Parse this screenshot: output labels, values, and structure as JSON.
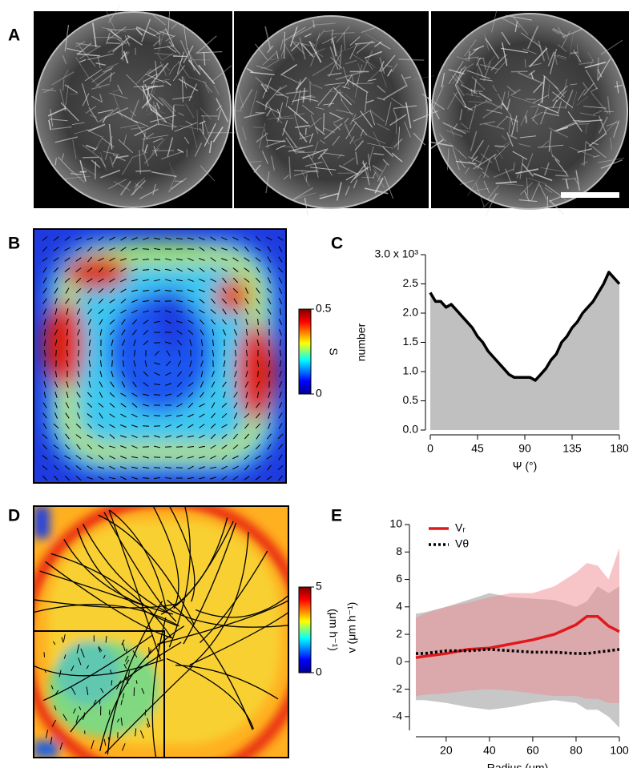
{
  "panel_labels": [
    "A",
    "B",
    "C",
    "D",
    "E"
  ],
  "chart_data": [
    {
      "type": "colorbar",
      "label": "S",
      "ylim": [
        0,
        0.5
      ],
      "yticks": [
        0,
        0.5
      ]
    },
    {
      "type": "area",
      "xlabel": "Ψ (°)",
      "ylabel": "number",
      "color": "#000000",
      "fill": "#c0c0c0",
      "x": [
        0,
        5,
        10,
        15,
        20,
        25,
        30,
        35,
        40,
        45,
        50,
        55,
        60,
        65,
        70,
        75,
        80,
        85,
        90,
        95,
        100,
        105,
        110,
        115,
        120,
        125,
        130,
        135,
        140,
        145,
        150,
        155,
        160,
        165,
        170,
        175,
        180
      ],
      "values": [
        2.35,
        2.2,
        2.2,
        2.1,
        2.15,
        2.05,
        1.95,
        1.85,
        1.75,
        1.6,
        1.5,
        1.35,
        1.25,
        1.15,
        1.05,
        0.95,
        0.9,
        0.9,
        0.9,
        0.9,
        0.85,
        0.95,
        1.05,
        1.2,
        1.3,
        1.5,
        1.6,
        1.75,
        1.85,
        2.0,
        2.1,
        2.2,
        2.35,
        2.5,
        2.7,
        2.6,
        2.5
      ],
      "xlim": [
        0,
        180
      ],
      "xticks": [
        0,
        45,
        90,
        135,
        180
      ],
      "ylim": [
        0,
        3
      ],
      "yticks": [
        {
          "value": 0,
          "label": "0.0"
        },
        0.5,
        {
          "value": 1,
          "label": "1.0"
        },
        1.5,
        {
          "value": 2,
          "label": "2.0"
        },
        2.5,
        {
          "value": 3,
          "label": "3.0 x 10³"
        }
      ]
    },
    {
      "type": "colorbar",
      "label": "(μm h⁻¹)",
      "ylim": [
        0,
        5
      ],
      "yticks": [
        0,
        5
      ]
    },
    {
      "type": "line",
      "xlabel": "Radius (μm)",
      "ylabel": "v (μm h⁻¹)",
      "x": [
        6,
        10,
        20,
        30,
        40,
        50,
        60,
        70,
        80,
        85,
        90,
        95,
        100
      ],
      "series": [
        {
          "name": "Vᵣ",
          "color": "#e0191c",
          "band_color": "#f08a8f",
          "dash": false,
          "values": [
            0.3,
            0.4,
            0.6,
            0.9,
            1.0,
            1.3,
            1.6,
            2.0,
            2.7,
            3.3,
            3.3,
            2.6,
            2.2
          ],
          "low": [
            -2.5,
            -2.4,
            -2.3,
            -2.1,
            -2.0,
            -2.1,
            -2.3,
            -2.5,
            -2.5,
            -2.7,
            -2.7,
            -3.0,
            -3.0
          ],
          "high": [
            3.2,
            3.5,
            4.0,
            4.3,
            4.7,
            5.0,
            5.0,
            5.5,
            6.5,
            7.2,
            7.0,
            6.0,
            8.3
          ]
        },
        {
          "name": "Vθ",
          "color": "#000000",
          "band_color": "#909090",
          "dash": true,
          "values": [
            0.6,
            0.6,
            0.8,
            0.8,
            0.9,
            0.8,
            0.7,
            0.7,
            0.6,
            0.6,
            0.7,
            0.8,
            0.9
          ],
          "low": [
            -2.8,
            -2.8,
            -3.0,
            -3.3,
            -3.5,
            -3.3,
            -3.0,
            -2.8,
            -3.0,
            -3.5,
            -3.5,
            -4.0,
            -4.8
          ],
          "high": [
            3.5,
            3.6,
            4.0,
            4.5,
            5.0,
            4.7,
            4.6,
            4.5,
            4.0,
            4.4,
            5.5,
            5.0,
            5.5
          ]
        }
      ],
      "xlim": [
        6,
        100
      ],
      "xticks": [
        20,
        40,
        60,
        80,
        100
      ],
      "ylim": [
        -5,
        10
      ],
      "yticks": [
        -4,
        -2,
        0,
        2,
        4,
        6,
        8,
        10
      ]
    }
  ]
}
